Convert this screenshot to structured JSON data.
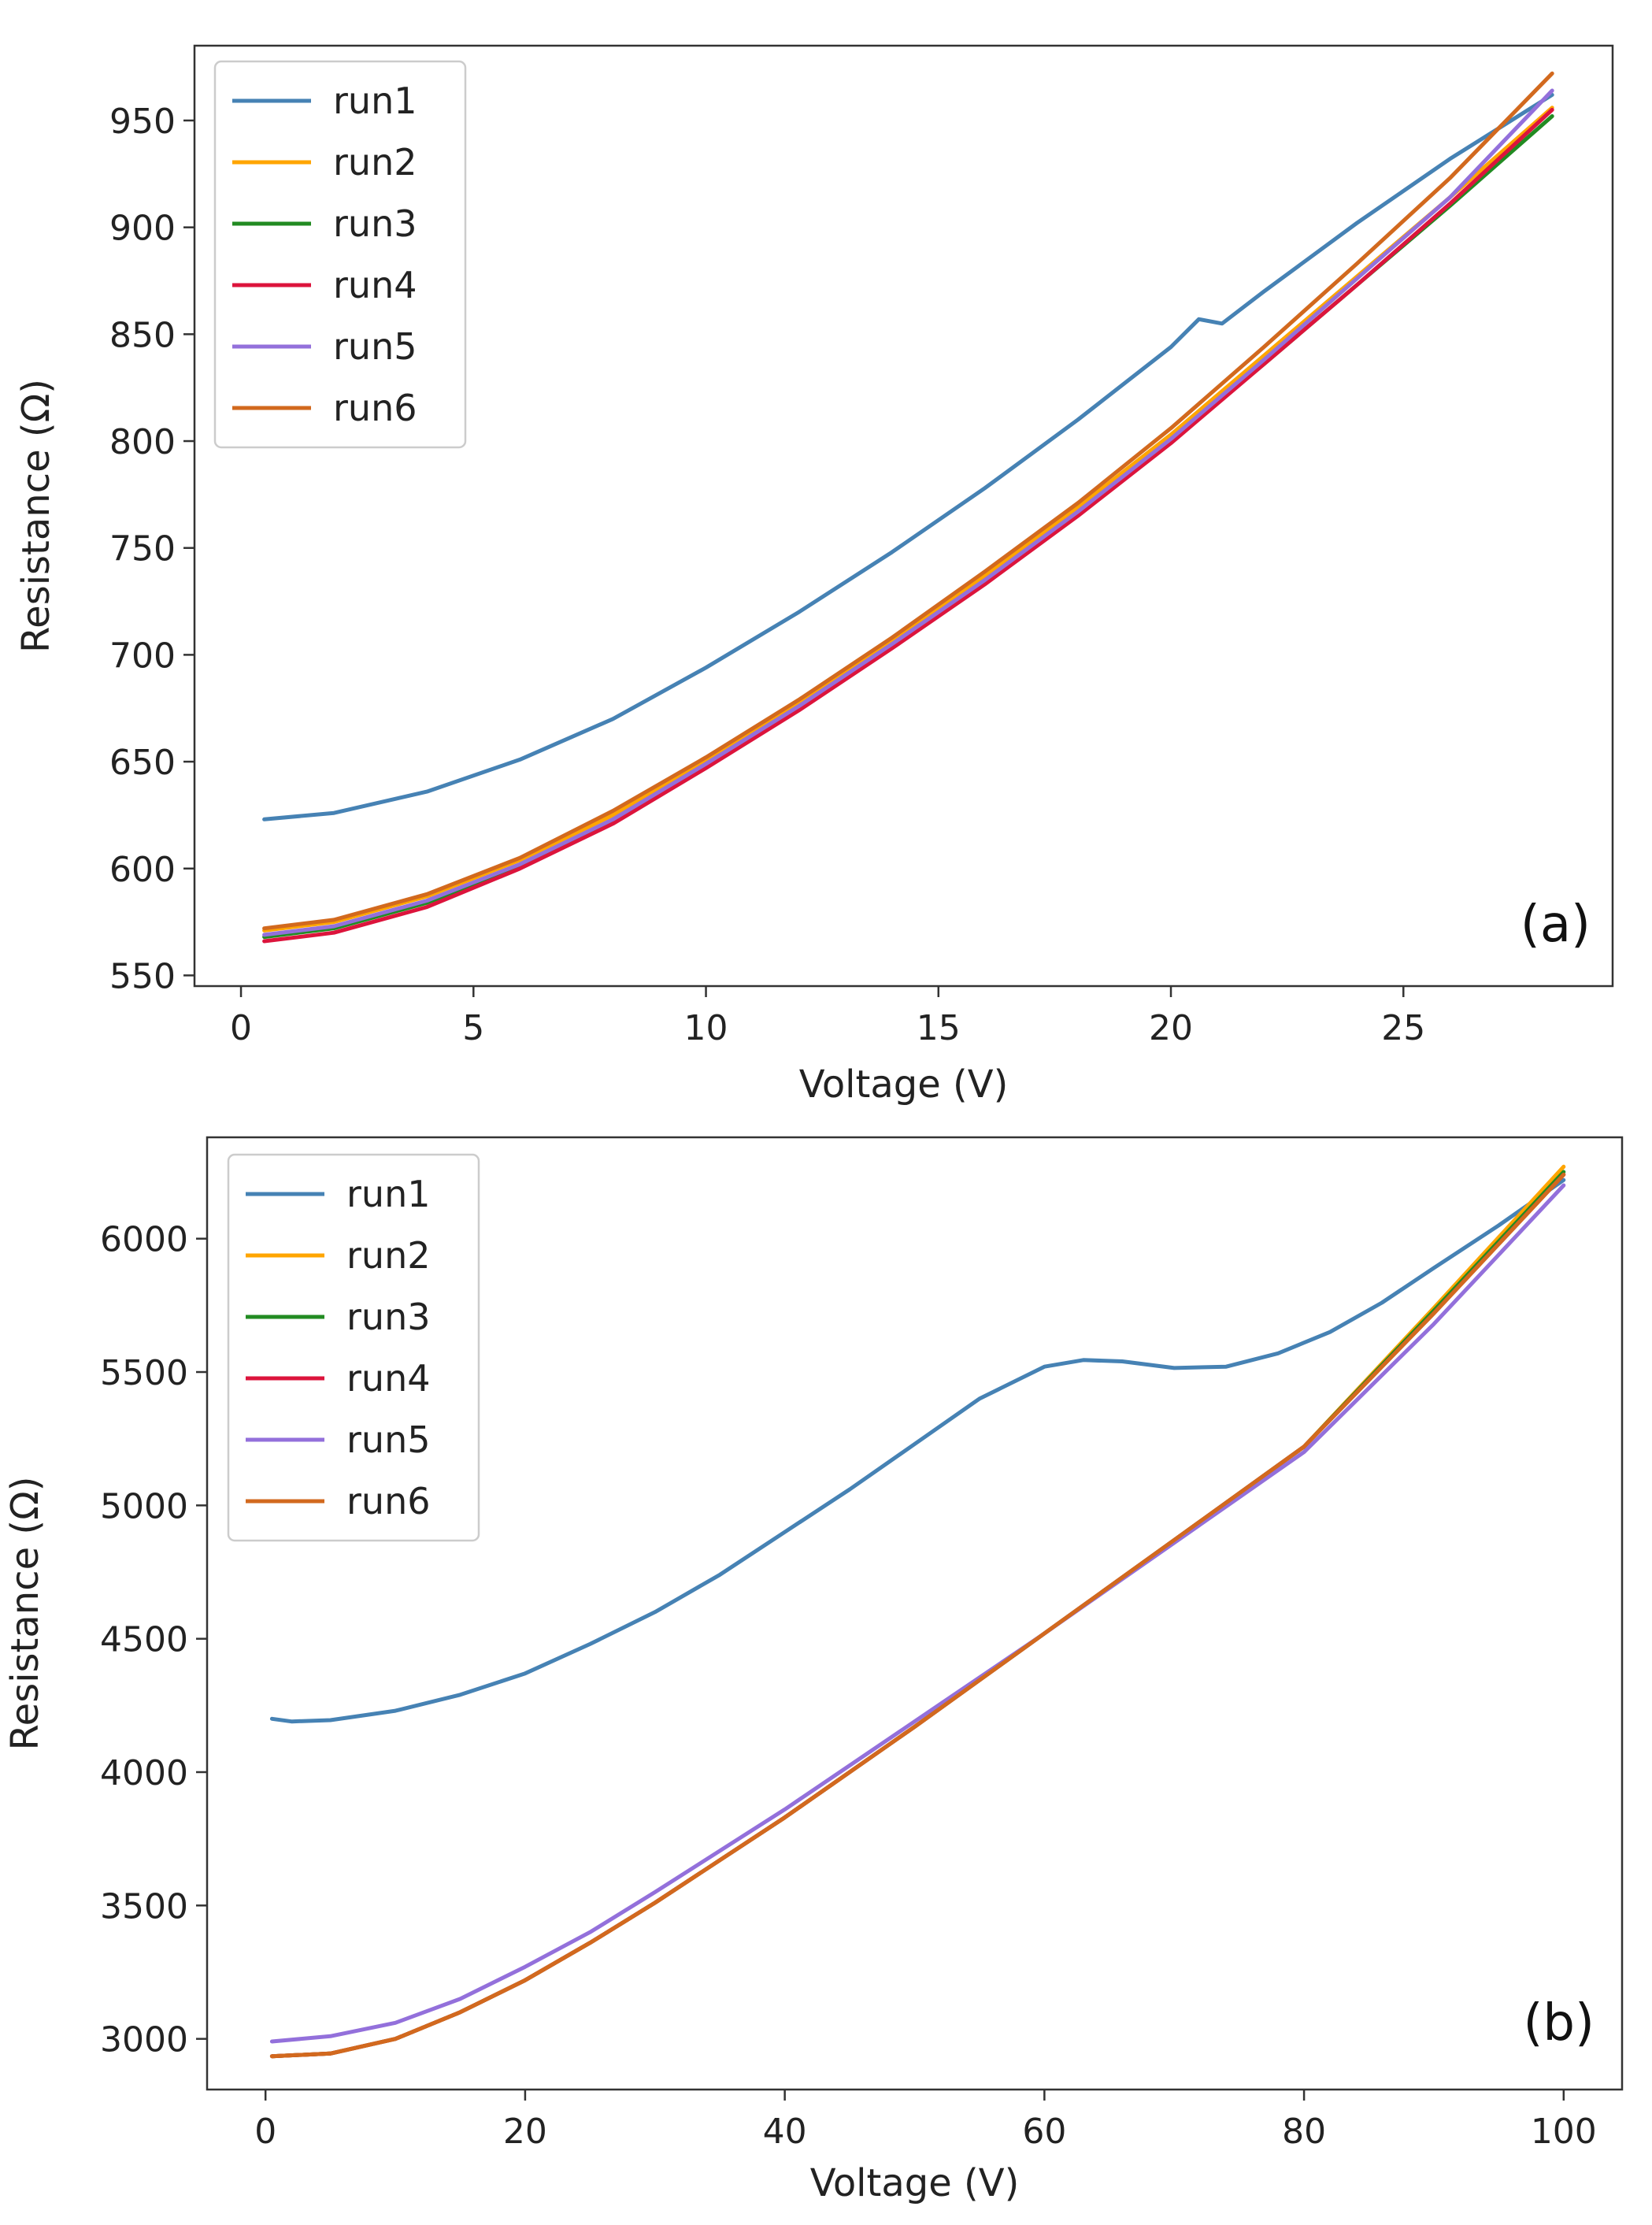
{
  "chart_data": [
    {
      "type": "line",
      "panel_label": "(a)",
      "xlabel": "Voltage (V)",
      "ylabel": "Resistance (Ω)",
      "xlim": [
        -1,
        29.5
      ],
      "ylim": [
        545,
        985
      ],
      "xticks": [
        0,
        5,
        10,
        15,
        20,
        25
      ],
      "yticks": [
        550,
        600,
        650,
        700,
        750,
        800,
        850,
        900,
        950
      ],
      "legend": "upper-left",
      "series": [
        {
          "name": "run1",
          "color": "#4682b4",
          "x": [
            0.5,
            2,
            4,
            6,
            8,
            10,
            12,
            14,
            16,
            18,
            20,
            20.6,
            21.1,
            22,
            24,
            26,
            28.2
          ],
          "y": [
            623,
            626,
            636,
            651,
            670,
            694,
            720,
            748,
            778,
            810,
            844,
            857,
            855,
            870,
            902,
            932,
            962
          ]
        },
        {
          "name": "run2",
          "color": "#ffa500",
          "x": [
            0.5,
            2,
            4,
            6,
            8,
            10,
            12,
            14,
            16,
            18,
            20,
            22,
            24,
            26,
            28.2
          ],
          "y": [
            571,
            575,
            587,
            604,
            625,
            650,
            677,
            706,
            737,
            769,
            803,
            840,
            877,
            914,
            956
          ]
        },
        {
          "name": "run3",
          "color": "#228b22",
          "x": [
            0.5,
            2,
            4,
            6,
            8,
            10,
            12,
            14,
            16,
            18,
            20,
            22,
            24,
            26,
            28.2
          ],
          "y": [
            568,
            572,
            584,
            601,
            622,
            648,
            675,
            704,
            734,
            766,
            800,
            836,
            873,
            910,
            952
          ]
        },
        {
          "name": "run4",
          "color": "#dc143c",
          "x": [
            0.5,
            2,
            4,
            6,
            8,
            10,
            12,
            14,
            16,
            18,
            20,
            22,
            24,
            26,
            28.2
          ],
          "y": [
            566,
            570,
            582,
            600,
            621,
            647,
            674,
            703,
            733,
            765,
            799,
            836,
            873,
            911,
            955
          ]
        },
        {
          "name": "run5",
          "color": "#9370db",
          "x": [
            0.5,
            2,
            4,
            6,
            8,
            10,
            12,
            14,
            16,
            18,
            20,
            22,
            24,
            26,
            28.2
          ],
          "y": [
            569,
            573,
            585,
            602,
            623,
            649,
            676,
            705,
            735,
            767,
            801,
            838,
            876,
            914,
            964
          ]
        },
        {
          "name": "run6",
          "color": "#d2691e",
          "x": [
            0.5,
            2,
            4,
            6,
            8,
            10,
            12,
            14,
            16,
            18,
            20,
            22,
            24,
            26,
            28.2
          ],
          "y": [
            572,
            576,
            588,
            605,
            627,
            652,
            679,
            708,
            739,
            771,
            806,
            844,
            883,
            923,
            972
          ]
        }
      ]
    },
    {
      "type": "line",
      "panel_label": "(b)",
      "xlabel": "Voltage (V)",
      "ylabel": "Resistance (Ω)",
      "xlim": [
        -4.5,
        104.5
      ],
      "ylim": [
        2810,
        6380
      ],
      "xticks": [
        0,
        20,
        40,
        60,
        80,
        100
      ],
      "yticks": [
        3000,
        3500,
        4000,
        4500,
        5000,
        5500,
        6000
      ],
      "legend": "upper-left",
      "series": [
        {
          "name": "run1",
          "color": "#4682b4",
          "x": [
            0.5,
            2,
            5,
            10,
            15,
            20,
            25,
            30,
            35,
            40,
            45,
            50,
            55,
            60,
            63,
            66,
            70,
            74,
            78,
            82,
            86,
            90,
            95,
            100
          ],
          "y": [
            4200,
            4190,
            4195,
            4230,
            4290,
            4370,
            4480,
            4600,
            4740,
            4900,
            5060,
            5230,
            5400,
            5520,
            5545,
            5540,
            5515,
            5520,
            5570,
            5650,
            5760,
            5890,
            6050,
            6220
          ]
        },
        {
          "name": "run2",
          "color": "#ffa500",
          "x": [
            0.5,
            5,
            10,
            15,
            20,
            25,
            30,
            40,
            50,
            60,
            70,
            80,
            90,
            100
          ],
          "y": [
            2935,
            2945,
            3000,
            3100,
            3220,
            3360,
            3510,
            3830,
            4170,
            4520,
            4870,
            5220,
            5740,
            6270
          ]
        },
        {
          "name": "run3",
          "color": "#228b22",
          "x": [
            0.5,
            5,
            10,
            15,
            20,
            25,
            30,
            40,
            50,
            60,
            70,
            80,
            90,
            100
          ],
          "y": [
            2935,
            2945,
            3000,
            3100,
            3220,
            3360,
            3510,
            3830,
            4170,
            4520,
            4870,
            5220,
            5730,
            6250
          ]
        },
        {
          "name": "run4",
          "color": "#dc143c",
          "x": [
            0.5,
            5,
            10,
            15,
            20,
            25,
            30,
            40,
            50,
            60,
            70,
            80,
            90,
            100
          ],
          "y": [
            2935,
            2945,
            3000,
            3100,
            3220,
            3360,
            3510,
            3830,
            4170,
            4520,
            4870,
            5220,
            5720,
            6240
          ]
        },
        {
          "name": "run5",
          "color": "#9370db",
          "x": [
            0.5,
            5,
            10,
            15,
            20,
            25,
            30,
            40,
            50,
            60,
            70,
            80,
            90,
            100
          ],
          "y": [
            2990,
            3010,
            3060,
            3150,
            3270,
            3400,
            3550,
            3860,
            4190,
            4520,
            4860,
            5200,
            5680,
            6200
          ]
        },
        {
          "name": "run6",
          "color": "#d2691e",
          "x": [
            0.5,
            5,
            10,
            15,
            20,
            25,
            30,
            40,
            50,
            60,
            70,
            80,
            90,
            100
          ],
          "y": [
            2935,
            2945,
            3000,
            3100,
            3220,
            3360,
            3510,
            3830,
            4170,
            4520,
            4870,
            5220,
            5720,
            6240
          ]
        }
      ]
    }
  ]
}
